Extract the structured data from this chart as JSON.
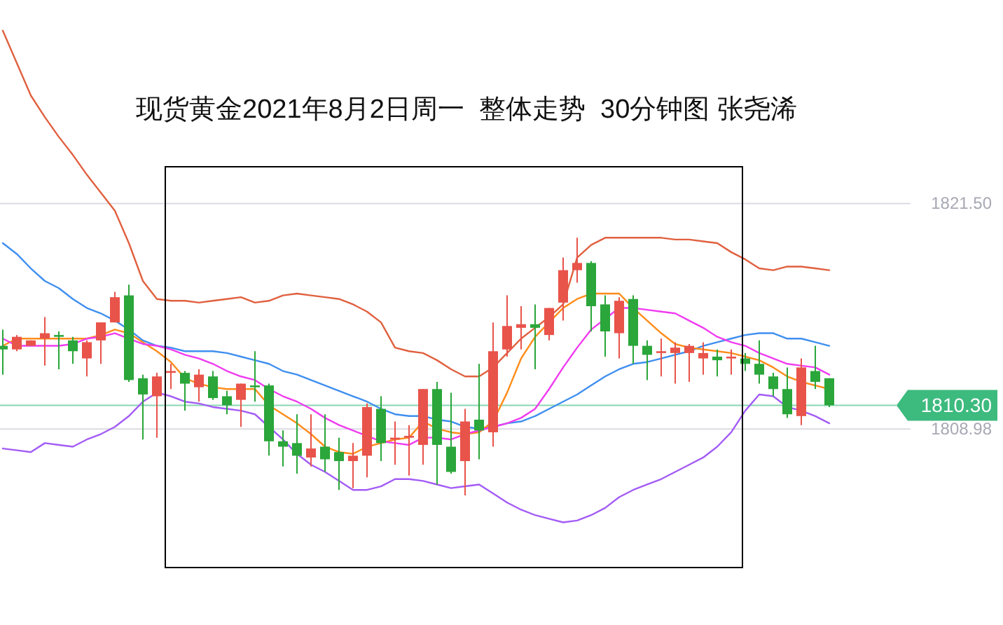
{
  "chart_data": {
    "type": "candlestick",
    "title": "现货黄金2021年8月2日周一  整体走势  30分钟图 张尧浠",
    "categories": [
      null,
      null,
      null,
      null,
      null,
      null,
      null,
      null,
      null,
      null,
      null,
      null,
      null,
      null,
      null,
      null,
      null,
      null,
      null,
      null,
      null,
      null,
      null,
      null,
      null,
      null,
      null,
      null,
      null,
      null,
      null,
      null,
      null,
      null,
      null,
      null,
      null,
      null,
      null,
      null,
      null,
      null,
      null,
      null,
      null,
      null,
      null,
      null,
      null,
      null,
      null,
      null,
      null,
      null,
      null,
      null,
      null,
      null,
      null,
      null
    ],
    "ohlc": [
      [
        1813.6,
        1814.5,
        1812.0,
        1813.4
      ],
      [
        1813.4,
        1814.2,
        1813.3,
        1814.1
      ],
      [
        1813.6,
        1813.9,
        1813.6,
        1813.9
      ],
      [
        1814.0,
        1815.2,
        1812.5,
        1814.3
      ],
      [
        1814.2,
        1814.4,
        1812.3,
        1814.1
      ],
      [
        1813.9,
        1814.1,
        1812.6,
        1813.3
      ],
      [
        1812.9,
        1813.9,
        1811.9,
        1813.8
      ],
      [
        1813.9,
        1814.9,
        1812.6,
        1814.9
      ],
      [
        1814.9,
        1816.6,
        1814.9,
        1816.3
      ],
      [
        1816.4,
        1817.0,
        1811.6,
        1811.7
      ],
      [
        1811.8,
        1812.0,
        1808.4,
        1810.9
      ],
      [
        1810.8,
        1812.1,
        1808.5,
        1811.9
      ],
      [
        1812.1,
        1812.6,
        1811.2,
        1812.2
      ],
      [
        1812.1,
        1812.2,
        1810.0,
        1811.5
      ],
      [
        1811.3,
        1812.3,
        1810.5,
        1812.0
      ],
      [
        1811.9,
        1812.2,
        1810.6,
        1810.7
      ],
      [
        1810.8,
        1811.1,
        1809.8,
        1810.3
      ],
      [
        1810.6,
        1811.5,
        1809.1,
        1811.5
      ],
      [
        1811.4,
        1813.3,
        1810.5,
        1811.3
      ],
      [
        1811.4,
        1811.5,
        1807.5,
        1808.3
      ],
      [
        1808.3,
        1808.9,
        1806.9,
        1808.0
      ],
      [
        1808.2,
        1809.8,
        1806.5,
        1807.5
      ],
      [
        1807.4,
        1809.8,
        1806.9,
        1807.9
      ],
      [
        1808.0,
        1809.8,
        1806.6,
        1807.3
      ],
      [
        1807.7,
        1808.5,
        1805.6,
        1807.2
      ],
      [
        1807.2,
        1808.2,
        1805.7,
        1807.5
      ],
      [
        1807.5,
        1810.4,
        1806.3,
        1810.2
      ],
      [
        1810.1,
        1810.8,
        1807.2,
        1808.2
      ],
      [
        1808.4,
        1809.4,
        1807.0,
        1808.5
      ],
      [
        1808.5,
        1809.2,
        1806.4,
        1808.6
      ],
      [
        1808.1,
        1811.2,
        1807.0,
        1811.2
      ],
      [
        1811.2,
        1811.6,
        1805.9,
        1808.1
      ],
      [
        1808.0,
        1811.0,
        1806.5,
        1806.6
      ],
      [
        1807.2,
        1810.1,
        1805.3,
        1809.4
      ],
      [
        1809.5,
        1812.6,
        1807.3,
        1808.9
      ],
      [
        1808.8,
        1814.9,
        1808.0,
        1813.3
      ],
      [
        1813.4,
        1816.4,
        1813.0,
        1814.7
      ],
      [
        1814.6,
        1815.8,
        1813.4,
        1814.8
      ],
      [
        1814.8,
        1815.9,
        1812.3,
        1814.6
      ],
      [
        1814.2,
        1815.7,
        1813.9,
        1815.7
      ],
      [
        1816.0,
        1818.5,
        1815.0,
        1817.8
      ],
      [
        1817.8,
        1819.6,
        1817.1,
        1818.2
      ],
      [
        1818.2,
        1818.3,
        1814.4,
        1815.8
      ],
      [
        1815.9,
        1816.4,
        1813.0,
        1814.4
      ],
      [
        1814.3,
        1816.3,
        1812.9,
        1816.1
      ],
      [
        1816.2,
        1816.4,
        1812.6,
        1813.6
      ],
      [
        1813.6,
        1813.9,
        1811.7,
        1813.1
      ],
      [
        1813.2,
        1814.0,
        1811.9,
        1813.3
      ],
      [
        1813.2,
        1813.8,
        1811.5,
        1813.5
      ],
      [
        1813.2,
        1813.7,
        1811.6,
        1813.6
      ],
      [
        1812.9,
        1813.8,
        1812.0,
        1813.2
      ],
      [
        1813.0,
        1813.4,
        1811.9,
        1812.8
      ],
      [
        1812.9,
        1813.4,
        1812.0,
        1813.0
      ],
      [
        1812.9,
        1813.2,
        1812.2,
        1812.6
      ],
      [
        1812.6,
        1813.9,
        1811.5,
        1812.0
      ],
      [
        1811.9,
        1812.1,
        1810.8,
        1811.2
      ],
      [
        1811.2,
        1812.4,
        1809.6,
        1809.8
      ],
      [
        1809.7,
        1812.9,
        1809.2,
        1812.4
      ],
      [
        1812.2,
        1813.6,
        1811.2,
        1811.6
      ],
      [
        1811.8,
        1811.8,
        1810.2,
        1810.3
      ]
    ],
    "colors": [
      "#2aa63a",
      "#e8534a",
      "#e8534a",
      "#e8534a",
      "#2aa63a",
      "#2aa63a",
      "#e8534a",
      "#e8534a",
      "#e8534a",
      "#2aa63a",
      "#2aa63a",
      "#e8534a",
      "#e8534a",
      "#2aa63a",
      "#e8534a",
      "#2aa63a",
      "#2aa63a",
      "#e8534a",
      "#2aa63a",
      "#2aa63a",
      "#2aa63a",
      "#2aa63a",
      "#e8534a",
      "#2aa63a",
      "#2aa63a",
      "#e8534a",
      "#e8534a",
      "#2aa63a",
      "#e8534a",
      "#e8534a",
      "#e8534a",
      "#2aa63a",
      "#2aa63a",
      "#e8534a",
      "#2aa63a",
      "#e8534a",
      "#e8534a",
      "#e8534a",
      "#2aa63a",
      "#e8534a",
      "#e8534a",
      "#e8534a",
      "#2aa63a",
      "#2aa63a",
      "#e8534a",
      "#2aa63a",
      "#2aa63a",
      "#e8534a",
      "#e8534a",
      "#e8534a",
      "#e8534a",
      "#2aa63a",
      "#e8534a",
      "#2aa63a",
      "#2aa63a",
      "#2aa63a",
      "#2aa63a",
      "#e8534a",
      "#2aa63a",
      "#2aa63a"
    ],
    "series": [
      {
        "type": "line",
        "color": "#e0603f",
        "values": [
          1831.1,
          1829.3,
          1827.5,
          1826.3,
          1825.2,
          1824.2,
          1823.1,
          1822.1,
          1821.1,
          1819.3,
          1817.2,
          1816.2,
          1816.1,
          1816.1,
          1816.0,
          1816.1,
          1816.2,
          1816.3,
          1816.0,
          1816.1,
          1816.4,
          1816.5,
          1816.4,
          1816.3,
          1816.2,
          1815.9,
          1815.5,
          1814.9,
          1813.5,
          1813.3,
          1813.2,
          1812.8,
          1812.3,
          1811.9,
          1811.9,
          1812.4,
          1813.2,
          1814.0,
          1814.6,
          1815.2,
          1815.9,
          1818.5,
          1819.2,
          1819.6,
          1819.6,
          1819.6,
          1819.6,
          1819.6,
          1819.5,
          1819.5,
          1819.4,
          1819.3,
          1818.8,
          1818.4,
          1817.9,
          1817.8,
          1818.0,
          1818.0,
          1817.9,
          1817.8
        ]
      },
      {
        "type": "line",
        "color": "#3f8fef",
        "values": [
          1819.3,
          1818.7,
          1817.9,
          1817.2,
          1816.8,
          1816.2,
          1815.7,
          1815.4,
          1815.0,
          1814.5,
          1813.9,
          1813.6,
          1813.5,
          1813.3,
          1813.3,
          1813.3,
          1813.2,
          1813.0,
          1812.8,
          1812.6,
          1812.2,
          1812.0,
          1811.7,
          1811.4,
          1811.1,
          1810.8,
          1810.5,
          1810.1,
          1809.8,
          1809.7,
          1809.7,
          1809.5,
          1809.4,
          1809.1,
          1809.0,
          1809.1,
          1809.3,
          1809.4,
          1809.7,
          1810.1,
          1810.5,
          1810.9,
          1811.4,
          1811.9,
          1812.3,
          1812.6,
          1812.7,
          1812.9,
          1813.1,
          1813.3,
          1813.6,
          1813.8,
          1814.0,
          1814.2,
          1814.3,
          1814.3,
          1814.0,
          1814.0,
          1813.8,
          1813.6
        ]
      },
      {
        "type": "line",
        "color": "#a35cf5",
        "values": [
          1807.9,
          1807.8,
          1807.7,
          1808.2,
          1808.1,
          1808.0,
          1808.4,
          1808.7,
          1809.1,
          1809.7,
          1810.5,
          1811.0,
          1810.8,
          1810.5,
          1810.4,
          1810.2,
          1810.1,
          1810.0,
          1809.8,
          1809.1,
          1808.4,
          1807.6,
          1807.0,
          1806.6,
          1806.1,
          1805.6,
          1805.6,
          1805.8,
          1806.2,
          1806.2,
          1806.1,
          1805.9,
          1805.7,
          1805.8,
          1805.9,
          1805.4,
          1804.9,
          1804.5,
          1804.2,
          1804.0,
          1803.8,
          1803.9,
          1804.2,
          1804.6,
          1805.2,
          1805.6,
          1805.9,
          1806.2,
          1806.6,
          1807.0,
          1807.4,
          1808.0,
          1808.8,
          1810.0,
          1810.9,
          1810.8,
          1810.2,
          1810.0,
          1809.7,
          1809.3
        ]
      },
      {
        "type": "line",
        "color": "#ff8c1a",
        "values": [
          1813.6,
          1814.0,
          1814.0,
          1814.0,
          1814.0,
          1814.0,
          1814.0,
          1814.2,
          1814.5,
          1814.3,
          1813.8,
          1813.3,
          1812.7,
          1811.8,
          1811.5,
          1811.3,
          1811.2,
          1811.2,
          1811.2,
          1810.3,
          1809.8,
          1809.3,
          1808.7,
          1808.0,
          1807.7,
          1807.6,
          1808.0,
          1808.2,
          1808.4,
          1808.5,
          1809.4,
          1809.0,
          1808.8,
          1808.7,
          1808.8,
          1809.4,
          1811.0,
          1812.9,
          1814.1,
          1814.9,
          1815.7,
          1816.2,
          1816.5,
          1816.5,
          1816.5,
          1815.7,
          1815.0,
          1814.3,
          1813.7,
          1813.5,
          1813.4,
          1813.3,
          1813.2,
          1813.0,
          1812.8,
          1812.4,
          1811.9,
          1811.6,
          1811.4,
          1811.2
        ]
      },
      {
        "type": "line",
        "color": "#f03cf0",
        "values": [
          1814.0,
          1813.6,
          1813.6,
          1813.6,
          1813.6,
          1813.7,
          1814.0,
          1814.1,
          1814.3,
          1814.0,
          1813.7,
          1813.6,
          1813.4,
          1813.1,
          1812.9,
          1812.6,
          1812.2,
          1811.9,
          1811.7,
          1811.2,
          1810.8,
          1810.5,
          1810.1,
          1809.6,
          1809.2,
          1808.9,
          1808.6,
          1808.3,
          1808.2,
          1808.1,
          1808.5,
          1808.5,
          1808.4,
          1808.7,
          1808.9,
          1809.1,
          1809.3,
          1809.6,
          1810.1,
          1811.2,
          1812.4,
          1813.5,
          1814.5,
          1815.1,
          1815.7,
          1815.7,
          1815.6,
          1815.5,
          1815.4,
          1815.0,
          1814.6,
          1814.1,
          1813.8,
          1813.6,
          1813.2,
          1812.9,
          1812.6,
          1812.5,
          1812.4,
          1812.0
        ]
      }
    ],
    "ylim": [
      1798.1,
      1832.8
    ],
    "yticks": [
      {
        "value": 1821.5,
        "label": "1821.50"
      },
      {
        "value": 1808.98,
        "label": "1808.98"
      }
    ],
    "grid": "y",
    "tick_labels": "y",
    "ref_lines": [
      {
        "axis": "y",
        "value": 1810.3,
        "label": "1810.30",
        "color": "#3dba7e"
      }
    ]
  }
}
